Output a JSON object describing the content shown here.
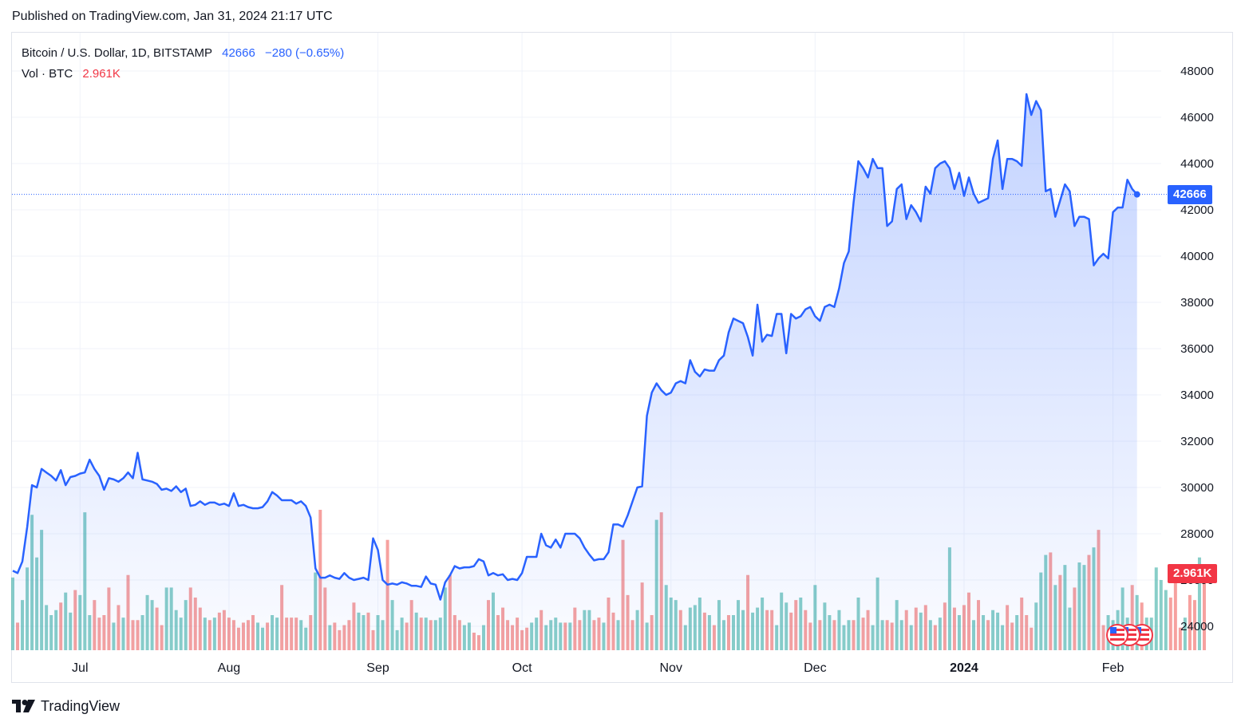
{
  "header": {
    "published": "Published on TradingView.com, Jan 31, 2024 21:17 UTC"
  },
  "legend": {
    "symbol": "Bitcoin / U.S. Dollar, 1D, BITSTAMP",
    "last": "42666",
    "change": "−280 (−0.65%)",
    "vol_label": "Vol · BTC",
    "vol_value": "2.961K"
  },
  "badges": {
    "price": "42666",
    "volume": "2.961K"
  },
  "footer": {
    "brand": "TradingView"
  },
  "colors": {
    "line": "#2962ff",
    "area_top": "#2962ff",
    "vol_up": "#26a69a",
    "vol_down": "#ef5350",
    "grid": "#f0f3fa",
    "axis_text": "#131722",
    "legend_blue": "#2962ff",
    "legend_red": "#f23645"
  },
  "chart_data": {
    "type": "area",
    "title": "Bitcoin / U.S. Dollar, 1D, BITSTAMP",
    "x_ticks": [
      {
        "label": "Jul",
        "date": "2023-07-01"
      },
      {
        "label": "Aug",
        "date": "2023-08-01"
      },
      {
        "label": "Sep",
        "date": "2023-09-01"
      },
      {
        "label": "Oct",
        "date": "2023-10-01"
      },
      {
        "label": "Nov",
        "date": "2023-11-01"
      },
      {
        "label": "Dec",
        "date": "2023-12-01"
      },
      {
        "label": "2024",
        "date": "2024-01-01",
        "bold": true
      },
      {
        "label": "Feb",
        "date": "2024-02-01"
      }
    ],
    "y_ticks": [
      24000,
      26000,
      28000,
      30000,
      32000,
      34000,
      36000,
      38000,
      40000,
      42000,
      44000,
      46000,
      48000
    ],
    "ylim": [
      23000,
      49000
    ],
    "grid": true,
    "last_price": 42666,
    "series": [
      {
        "start_date": "2023-06-17",
        "values": [
          26400,
          26300,
          26800,
          28300,
          30100,
          30000,
          30800,
          30650,
          30500,
          30300,
          30750,
          30100,
          30450,
          30500,
          30600,
          30650,
          31200,
          30800,
          30500,
          29900,
          30400,
          30350,
          30250,
          30400,
          30650,
          30400,
          31500,
          30350,
          30300,
          30250,
          30150,
          29900,
          29950,
          29850,
          30050,
          29800,
          29950,
          29200,
          29250,
          29400,
          29250,
          29350,
          29350,
          29250,
          29300,
          29200,
          29750,
          29200,
          29250,
          29150,
          29100,
          29100,
          29150,
          29400,
          29800,
          29650,
          29450,
          29450,
          29450,
          29300,
          29400,
          29200,
          28700,
          26500,
          26100,
          26100,
          26200,
          26100,
          26050,
          26300,
          26100,
          26000,
          26050,
          26100,
          26000,
          27800,
          27300,
          26000,
          25800,
          25850,
          25800,
          25900,
          25850,
          25750,
          25750,
          25700,
          26150,
          25850,
          25800,
          25150,
          25900,
          26200,
          26600,
          26500,
          26550,
          26550,
          26600,
          26900,
          26800,
          26200,
          26300,
          26200,
          26250,
          26000,
          26050,
          26000,
          26300,
          27000,
          27000,
          27000,
          28000,
          27500,
          27400,
          27750,
          27400,
          28000,
          28000,
          28000,
          27800,
          27400,
          27100,
          26850,
          26900,
          26900,
          27200,
          28400,
          28400,
          28300,
          28800,
          29400,
          30000,
          30050,
          33100,
          34100,
          34500,
          34200,
          34000,
          34100,
          34500,
          34600,
          34500,
          35500,
          35000,
          34800,
          35100,
          35050,
          35050,
          35500,
          35700,
          36700,
          37300,
          37200,
          37100,
          36500,
          35700,
          37900,
          36300,
          36600,
          36550,
          37500,
          37500,
          35800,
          37500,
          37300,
          37400,
          37700,
          37800,
          37400,
          37200,
          37800,
          37900,
          37800,
          38600,
          39700,
          40200,
          42300,
          44100,
          43800,
          43400,
          44200,
          43800,
          43800,
          41300,
          41500,
          42900,
          43100,
          41600,
          42200,
          41900,
          41500,
          43000,
          42700,
          43800,
          44000,
          44100,
          43800,
          42900,
          43600,
          42600,
          43400,
          42700,
          42300,
          42400,
          42500,
          44200,
          45000,
          42900,
          44200,
          44200,
          44100,
          43900,
          47000,
          46100,
          46700,
          46300,
          42800,
          42900,
          41700,
          42400,
          43100,
          42800,
          41300,
          41700,
          41700,
          41600,
          39600,
          39900,
          40100,
          39900,
          41900,
          42100,
          42100,
          43300,
          42900,
          42666
        ]
      },
      {
        "name": "Vol · BTC",
        "values": [
          2.9,
          1.1,
          2.0,
          3.3,
          5.4,
          3.7,
          4.8,
          1.8,
          1.4,
          1.6,
          1.9,
          2.3,
          1.5,
          2.4,
          2.2,
          5.5,
          1.4,
          2.0,
          1.3,
          1.4,
          2.5,
          1.1,
          1.8,
          1.3,
          3.0,
          1.2,
          1.2,
          1.4,
          2.2,
          2.0,
          1.7,
          1.0,
          2.5,
          2.5,
          1.6,
          1.3,
          2.0,
          2.5,
          2.1,
          1.7,
          1.3,
          1.2,
          1.3,
          1.5,
          1.6,
          1.3,
          1.2,
          0.9,
          1.1,
          1.2,
          1.4,
          1.1,
          0.9,
          1.1,
          1.4,
          1.3,
          2.6,
          1.3,
          1.3,
          1.3,
          1.2,
          0.9,
          1.4,
          3.1,
          5.6,
          2.5,
          1.0,
          1.1,
          0.8,
          1.0,
          1.2,
          1.9,
          1.5,
          1.4,
          1.5,
          0.8,
          1.4,
          1.2,
          4.4,
          2.0,
          0.8,
          1.3,
          1.1,
          2.0,
          1.5,
          1.3,
          1.3,
          1.2,
          1.2,
          1.3,
          2.5,
          3.0,
          1.4,
          1.2,
          1.0,
          1.1,
          0.7,
          0.6,
          1.0,
          2.0,
          2.3,
          1.4,
          1.7,
          1.2,
          1.0,
          1.3,
          0.8,
          0.9,
          1.1,
          1.3,
          1.6,
          1.0,
          1.2,
          1.3,
          1.1,
          1.1,
          1.1,
          1.7,
          1.2,
          1.6,
          1.6,
          1.2,
          1.3,
          1.1,
          2.1,
          1.5,
          1.2,
          4.4,
          2.2,
          1.2,
          1.6,
          2.7,
          1.1,
          1.4,
          5.2,
          5.5,
          2.6,
          2.1,
          2.0,
          1.6,
          1.0,
          1.7,
          1.8,
          2.1,
          1.5,
          1.4,
          1.0,
          2.0,
          1.2,
          1.4,
          1.4,
          2.0,
          1.6,
          3.0,
          1.5,
          1.7,
          2.1,
          1.6,
          1.6,
          1.0,
          2.3,
          1.9,
          1.5,
          2.0,
          2.1,
          1.6,
          1.1,
          2.6,
          1.2,
          1.9,
          1.4,
          1.2,
          1.6,
          1.0,
          1.2,
          1.2,
          2.1,
          1.3,
          1.6,
          1.0,
          2.9,
          1.2,
          1.2,
          1.1,
          2.0,
          1.2,
          1.6,
          1.0,
          1.7,
          1.5,
          1.8,
          1.2,
          1.0,
          1.3,
          1.9,
          4.1,
          1.7,
          1.4,
          1.8,
          2.3,
          1.2,
          2.0,
          1.4,
          1.2,
          1.6,
          1.5,
          1.0,
          1.8,
          1.1,
          1.4,
          2.1,
          1.4,
          0.9,
          1.9,
          3.1,
          3.8,
          3.9,
          2.6,
          3.0,
          3.4,
          1.7,
          2.5,
          3.5,
          3.4,
          3.8,
          4.1,
          4.8,
          1.0,
          1.4,
          1.2,
          1.6,
          2.5,
          1.3,
          2.6,
          2.2,
          1.9,
          1.3,
          1.3,
          3.3,
          2.8,
          2.4,
          2.1,
          3.0,
          0.9,
          1.3,
          2.2,
          2.0,
          3.7,
          2.961
        ]
      }
    ],
    "volume_colors": "gdggggggggdggdgggddddgdgdddgggddgggggdddgdgddddddddggdggddddggdgddgdddddggddggdgggddgdgdgggdddggddgdgdddddddggdggggdgddggddgddgdddgdgdgdgggdggggdgdggdgggdgggddgggddgddgdggdgggdgddgggddggdgdgdgdgdgdgddgdgdgggddgdddgggdgdggdggdgddgggggdgdgggggdddgddgddgggdgdddggd"
  }
}
